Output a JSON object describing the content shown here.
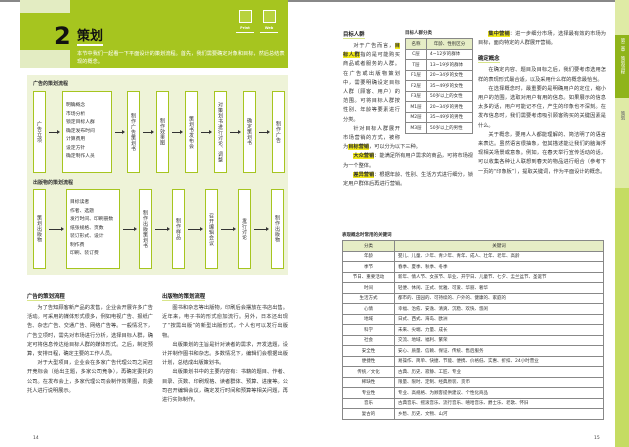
{
  "header": {
    "number": "2",
    "title": "策划",
    "intro": "本节中我们一起看一下平面设计的策划流程。首先，我们需要确定对象和目标，然后总结表现的概念。",
    "media": [
      "Print",
      "Web"
    ]
  },
  "diagram": {
    "ad_label": "广告的策划流程",
    "ad_steps": [
      "广告立项",
      [
        "明确概念",
        "市场分析",
        "锁定目标人群",
        "确定发布时间",
        "计算费用",
        "设定方针",
        "确定制作人员"
      ],
      "制作广告策划书",
      "制作效果图",
      "策划书发布会",
      "对策划书进行讨论、调整",
      "确定策划书",
      "制作广告"
    ],
    "pub_label": "出版物的策划流程",
    "pub_steps": [
      "策划出版物",
      [
        "目标读者",
        "作者、选题",
        "发行时间、印刷册数",
        "纸张规格、页数",
        "装订形式、设计",
        "制作费",
        "印刷、装订费"
      ],
      "制作出版策划书",
      "制作样品",
      "召开编辑会议",
      "发行讨论",
      "制作出版物"
    ]
  },
  "left": {
    "col1": {
      "heading": "广告的策划流程",
      "paras": [
        "为了告知顾客新产品的发售，企业会开展许多广告活动。可采用的媒体形式很多，例如电视广告、报纸广告、杂志广告、交通广告、网络广告等。一般情况下，广告立项时，需先对市场进行分析，选择目标人群，确定可将信息传达给目标人群的媒体形式。之后，制定预算，安排日程，确定主要的工作人员。",
        "对于大型项目，企业会在多家广告代理公司之间召开竞标会（给出主题，多家公司竞争），再确定委托的公司。在发布会上，多家代理公司会制作效果图，向委托人进行说明展示。"
      ]
    },
    "col2": {
      "heading": "出版物的策划流程",
      "paras": [
        "图书和杂志等出版物，印刷后会摆放在书店出售。近年来，电子书的形式愈加流行。另外，日本还出现了“按需出版”的新型出版形式，个人也可以发行出版物。",
        "出版策划的主旨是针对读者的需求，开发选题，设计并制作图书和杂志。多数情况下，编辑们会根据出版计划，总结成出版策划书。",
        "出版策划书中的主要内容有：书籍的题目、作者、目录、页数、印刷规格、读者群体、预算、进度等。公司召开编辑会议，确定发行时间和预算等相关问题，再进行实际制作。"
      ]
    },
    "page_number": "14"
  },
  "right": {
    "target": {
      "heading": "目标人群",
      "p1_pre": "对于广告而言，",
      "p1_hl": "目标人群",
      "p1_post": "指的是可能购买商品或者服务的人群。在广告或出版物策划中，需要明确设定目标人群（顾客、用户）的范围。可将目标人群按性别、年龄等要素进行分类。",
      "p2_pre": "针对目标人群展开市场营销的方式，被称为",
      "p2_hl": "目标营销",
      "p2_post": "，可以分为以下三种。",
      "mass_hl": "大众营销",
      "mass": "：能满足所有用户需求的商品，可将市场视为一个整体。",
      "diff_hl": "差异营销",
      "diff": "：根据年龄、性别、生活方式进行细分，锁定用户群体后再进行营销。"
    },
    "target_table": {
      "caption": "目标人群分类",
      "headers": [
        "名称",
        "年龄、性别区分"
      ],
      "rows": [
        [
          "C层",
          "4~12岁的群体"
        ],
        [
          "T层",
          "13~19岁的群体"
        ],
        [
          "F1层",
          "20~34岁的女性"
        ],
        [
          "F2层",
          "35~49岁的女性"
        ],
        [
          "F3层",
          "50岁以上的女性"
        ],
        [
          "M1层",
          "20~34岁的男性"
        ],
        [
          "M2层",
          "35~49岁的男性"
        ],
        [
          "M3层",
          "50岁以上的男性"
        ]
      ]
    },
    "focus": {
      "hl": "集中营销",
      "text": "：进一步细分市场，选择最有效的市场为目标，面向特定的人群展开营销。"
    },
    "concept": {
      "heading": "确定概念",
      "paras": [
        "在确定内容、题目及目标之后，我们要考虑选用怎样的表现形式最合适，以及采用什么样的概念最恰当。",
        "在选择概念时，最重要的是明确用户的定位，缩小用户的范围，选取对用户有用的信息。如果展示的信息太多的话，用户可能记不住，产生的印象也不深刻。在发布信息时，我们需要考虑吸引顾客购买的关键因素是什么。",
        "关于概念，要用人人都能理解的、简洁明了的语言来表达。虽然语言很抽象，但其描述能让我们的脑海浮现相关场景或意象。例如，在春天举行宣传活动的话，可以收集各种让人联想到春天的物品进行组合（参考下一页的“印象板”），提取关键词，作为平面设计的概念。"
      ]
    },
    "keyword_table": {
      "caption": "表现概念时常用的关键词",
      "headers": [
        "分类",
        "关键词"
      ],
      "rows": [
        [
          "年龄",
          "婴儿、儿童、少年、青少年、青年、成人、壮年、老年、高龄"
        ],
        [
          "季节",
          "春季、夏季、秋季、冬季"
        ],
        [
          "节日、重要活动",
          "新年、情人节、女孩节、毕业、开学日、儿童节、七夕、盂兰盆节、圣诞节"
        ],
        [
          "时间",
          "轻便、休闲、正式、优雅、可爱、华丽、奢华"
        ],
        [
          "生活方式",
          "都市的、田园的、可持续的、户外的、健康的、家庭的"
        ],
        [
          "心情",
          "幸福、治愈、安逸、清爽、沉稳、欢快、悠闲"
        ],
        [
          "地域",
          "日式、西式、海岛、欧洲"
        ],
        [
          "科学",
          "未来、尖端、力量、成长"
        ],
        [
          "社会",
          "交流、地域、福利、繁荣"
        ],
        [
          "安全性",
          "安心、质量、信赖、保证、传统、售后服务"
        ],
        [
          "便捷性",
          "易操作、简单、快捷、节能、便携、价格低、实惠、折扣、24小时营业"
        ],
        [
          "传统／文化",
          "古典、历史、寂静、工匠、专业"
        ],
        [
          "稀缺性",
          "限量、限时、定制、经典原装、货币"
        ],
        [
          "专业性",
          "专业、高规格、为顾客提供建议、个性化商品"
        ],
        [
          "音乐",
          "古典音乐、摇滚音乐、流行音乐、嘻哈音乐、爵士乐、老歌、怀旧"
        ],
        [
          "复古的",
          "乡愁、历史、文物、山河"
        ]
      ]
    },
    "page_number": "15",
    "side_tabs": [
      "第二章　策划流程",
      "策划"
    ]
  },
  "colors": {
    "accent": "#a6c51f",
    "light": "#eef3d8",
    "highlight": "#f2ea1a"
  }
}
